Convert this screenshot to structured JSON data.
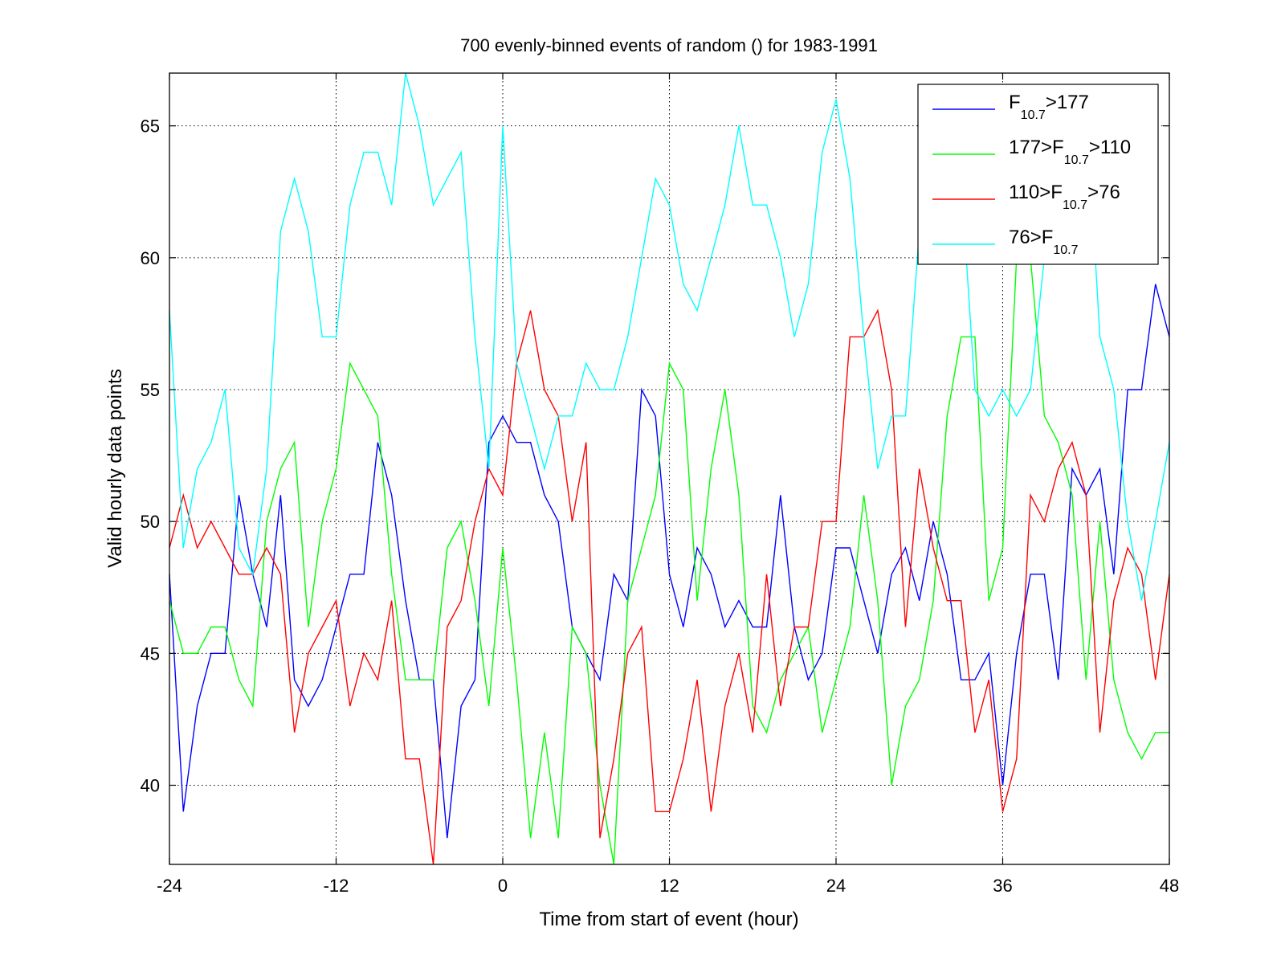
{
  "chart_data": {
    "type": "line",
    "title": "700 evenly-binned events of random  () for 1983-1991",
    "xlabel": "Time from start of event (hour)",
    "ylabel": "Valid hourly data points",
    "xlim": [
      -24,
      48
    ],
    "ylim": [
      37,
      67
    ],
    "xticks": [
      -24,
      -12,
      0,
      12,
      24,
      36,
      48
    ],
    "yticks": [
      40,
      45,
      50,
      55,
      60,
      65
    ],
    "grid": true,
    "legend_position": "top-right",
    "x": [
      -24,
      -23,
      -22,
      -21,
      -20,
      -19,
      -18,
      -17,
      -16,
      -15,
      -14,
      -13,
      -12,
      -11,
      -10,
      -9,
      -8,
      -7,
      -6,
      -5,
      -4,
      -3,
      -2,
      -1,
      0,
      1,
      2,
      3,
      4,
      5,
      6,
      7,
      8,
      9,
      10,
      11,
      12,
      13,
      14,
      15,
      16,
      17,
      18,
      19,
      20,
      21,
      22,
      23,
      24,
      25,
      26,
      27,
      28,
      29,
      30,
      31,
      32,
      33,
      34,
      35,
      36,
      37,
      38,
      39,
      40,
      41,
      42,
      43,
      44,
      45,
      46,
      47,
      48
    ],
    "series": [
      {
        "legend": {
          "pre": "F",
          "sub": "10.7",
          "post": ">177"
        },
        "color": "#0000ff",
        "values": [
          48,
          39,
          43,
          45,
          45,
          51,
          48,
          46,
          51,
          44,
          43,
          44,
          46,
          48,
          48,
          53,
          51,
          47,
          44,
          44,
          38,
          43,
          44,
          53,
          54,
          53,
          53,
          51,
          50,
          46,
          45,
          44,
          48,
          47,
          55,
          54,
          48,
          46,
          49,
          48,
          46,
          47,
          46,
          46,
          51,
          46,
          44,
          45,
          49,
          49,
          47,
          45,
          48,
          49,
          47,
          50,
          48,
          44,
          44,
          45,
          40,
          45,
          48,
          48,
          44,
          52,
          51,
          52,
          48,
          55,
          55,
          59,
          57
        ]
      },
      {
        "legend": {
          "pre": "177>F",
          "sub": "10.7",
          "post": ">110"
        },
        "color": "#00ff00",
        "values": [
          47,
          45,
          45,
          46,
          46,
          44,
          43,
          50,
          52,
          53,
          46,
          50,
          52,
          56,
          55,
          54,
          48,
          44,
          44,
          44,
          49,
          50,
          47,
          43,
          49,
          44,
          38,
          42,
          38,
          46,
          45,
          40,
          37,
          47,
          49,
          51,
          56,
          55,
          47,
          52,
          55,
          51,
          43,
          42,
          44,
          45,
          46,
          42,
          44,
          46,
          51,
          47,
          40,
          43,
          44,
          47,
          54,
          57,
          57,
          47,
          49,
          60,
          60,
          54,
          53,
          51,
          44,
          50,
          44,
          42,
          41,
          42,
          42
        ]
      },
      {
        "legend": {
          "pre": "110>F",
          "sub": "10.7",
          "post": ">76"
        },
        "color": "#ff0000",
        "values": [
          49,
          51,
          49,
          50,
          49,
          48,
          48,
          49,
          48,
          42,
          45,
          46,
          47,
          43,
          45,
          44,
          47,
          41,
          41,
          37,
          46,
          47,
          50,
          52,
          51,
          56,
          58,
          55,
          54,
          50,
          53,
          38,
          41,
          45,
          46,
          39,
          39,
          41,
          44,
          39,
          43,
          45,
          42,
          48,
          43,
          46,
          46,
          50,
          50,
          57,
          57,
          58,
          55,
          46,
          52,
          49,
          47,
          47,
          42,
          44,
          39,
          41,
          51,
          50,
          52,
          53,
          51,
          42,
          47,
          49,
          48,
          44,
          48
        ]
      },
      {
        "legend": {
          "pre": "76>F",
          "sub": "10.7",
          "post": ""
        },
        "color": "#00ffff",
        "values": [
          58,
          49,
          52,
          53,
          55,
          49,
          48,
          52,
          61,
          63,
          61,
          57,
          57,
          62,
          64,
          64,
          62,
          67,
          65,
          62,
          63,
          64,
          57,
          52,
          65,
          56,
          54,
          52,
          54,
          54,
          56,
          55,
          55,
          57,
          60,
          63,
          62,
          59,
          58,
          60,
          62,
          65,
          62,
          62,
          60,
          57,
          59,
          64,
          66,
          63,
          57,
          52,
          54,
          54,
          61,
          63,
          64,
          63,
          55,
          54,
          55,
          54,
          55,
          60,
          63,
          66,
          66,
          57,
          55,
          50,
          47,
          50,
          53
        ]
      }
    ]
  }
}
